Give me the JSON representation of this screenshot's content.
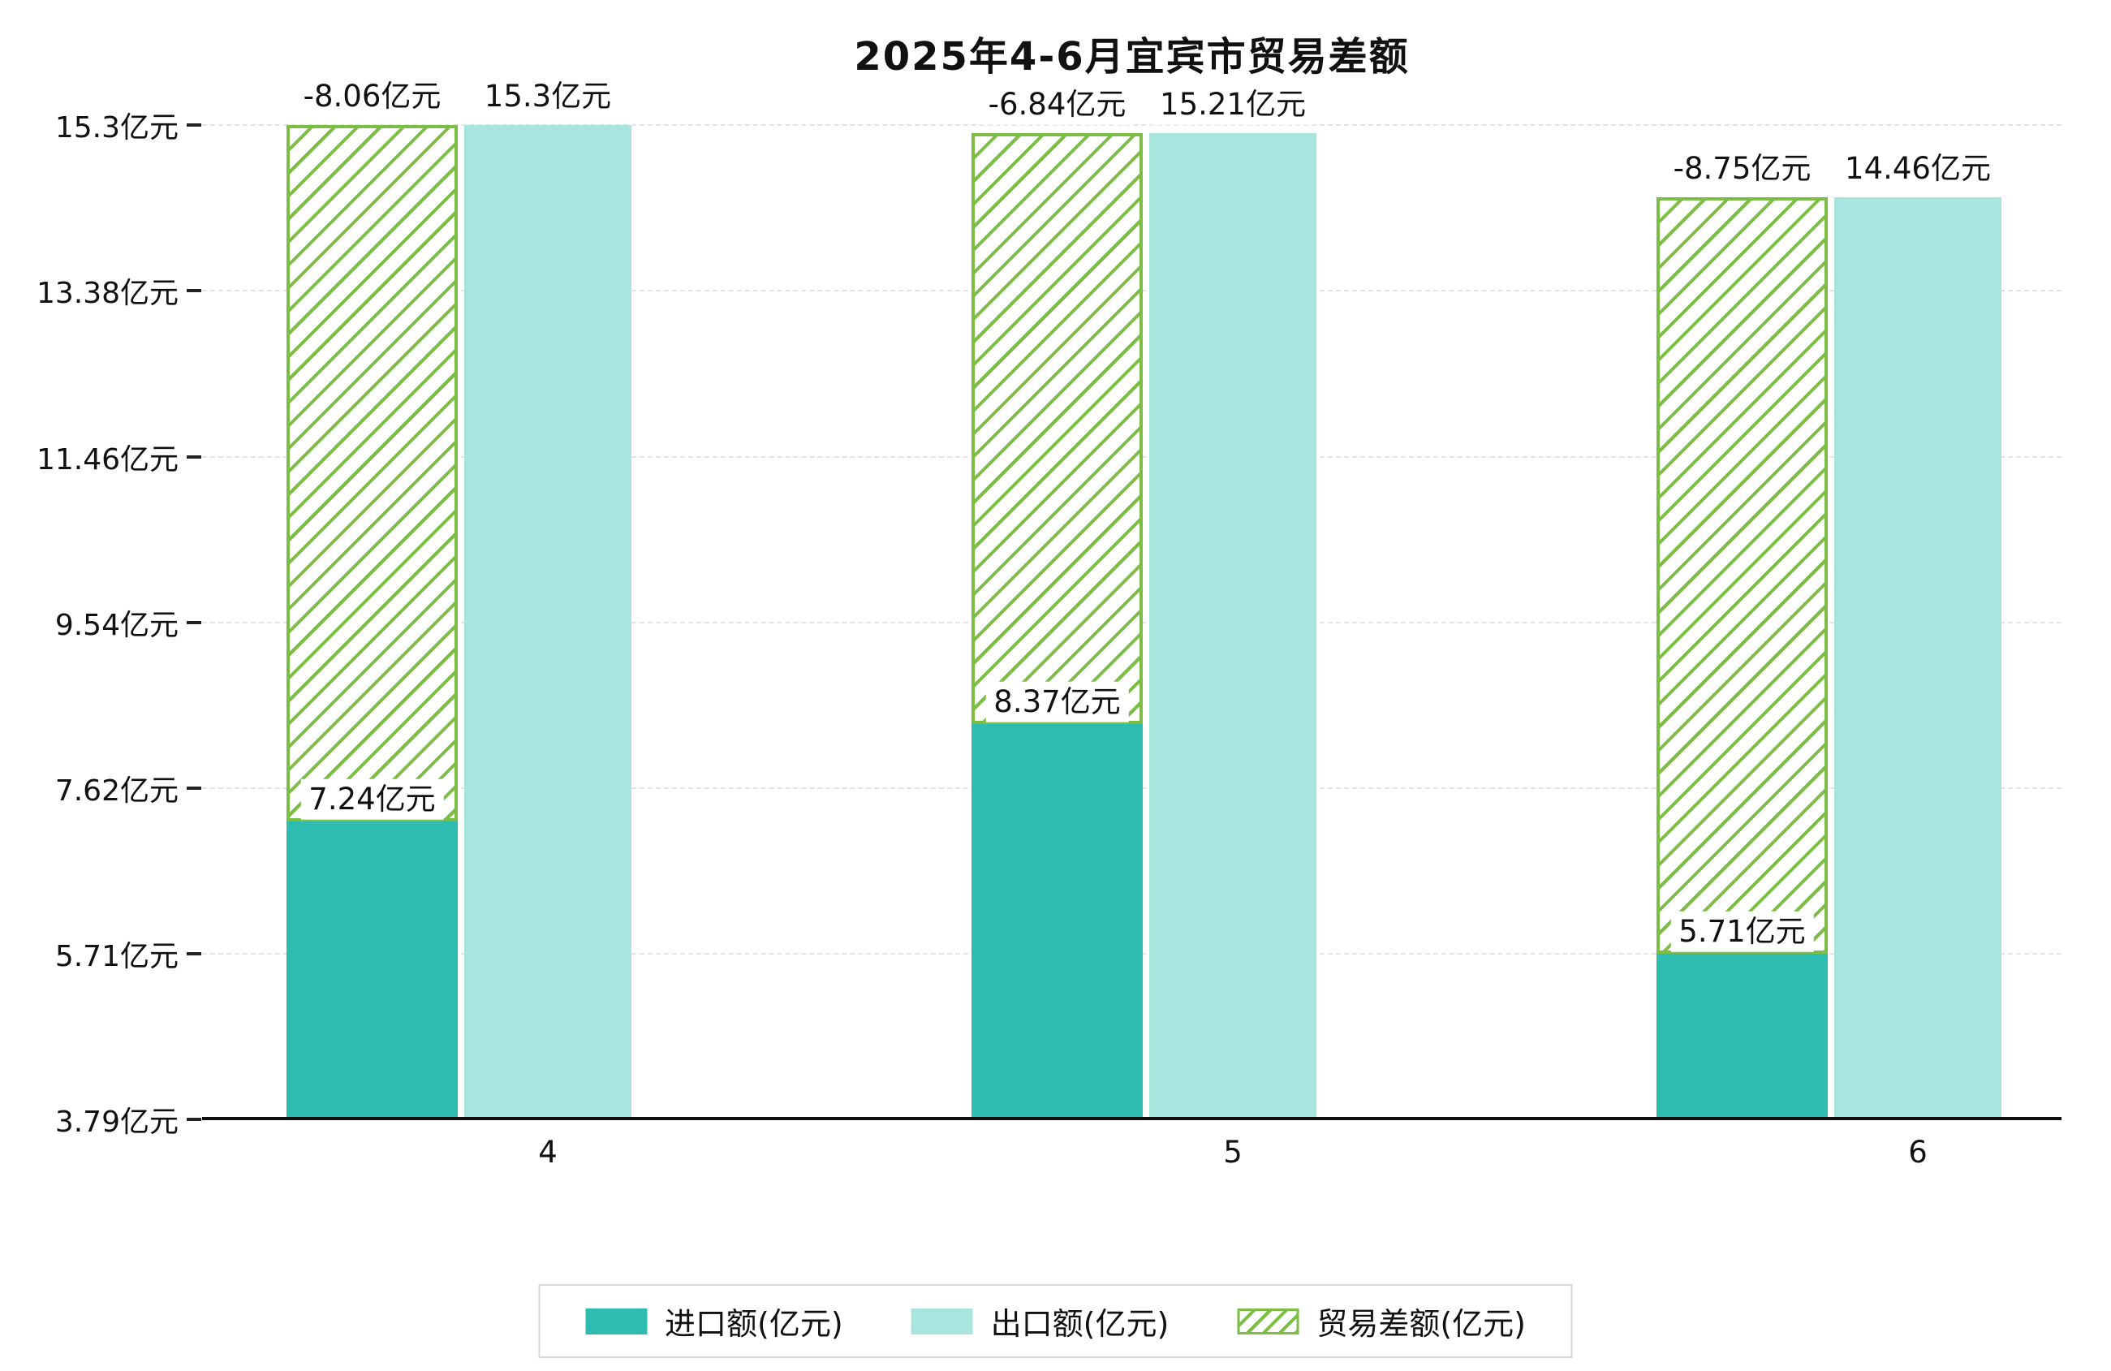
{
  "title": "2025年4-6月宜宾市贸易差额",
  "chart_data": {
    "type": "bar",
    "title": "2025年4-6月宜宾市贸易差额",
    "categories": [
      "4",
      "5",
      "6"
    ],
    "series": [
      {
        "name": "进口额(亿元)",
        "values": [
          7.24,
          8.37,
          5.71
        ],
        "labels": [
          "7.24亿元",
          "8.37亿元",
          "5.71亿元"
        ],
        "color": "#2fbcb0",
        "style": "solid"
      },
      {
        "name": "出口额(亿元)",
        "values": [
          15.3,
          15.21,
          14.46
        ],
        "labels": [
          "15.3亿元",
          "15.21亿元",
          "14.46亿元"
        ],
        "color": "#a9e5df",
        "style": "solid"
      },
      {
        "name": "贸易差额(亿元)",
        "values": [
          -8.06,
          -6.84,
          -8.75
        ],
        "labels": [
          "-8.06亿元",
          "-6.84亿元",
          "-8.75亿元"
        ],
        "color": "#7cbe45",
        "style": "hatched"
      }
    ],
    "unit": "亿元",
    "ylim": [
      3.79,
      15.3
    ],
    "y_ticks": [
      "15.3亿元",
      "13.38亿元",
      "11.46亿元",
      "9.54亿元",
      "7.62亿元",
      "5.71亿元",
      "3.79亿元"
    ],
    "y_tick_values": [
      15.3,
      13.38,
      11.46,
      9.54,
      7.62,
      5.71,
      3.79
    ],
    "grid": true,
    "legend_position": "bottom"
  }
}
